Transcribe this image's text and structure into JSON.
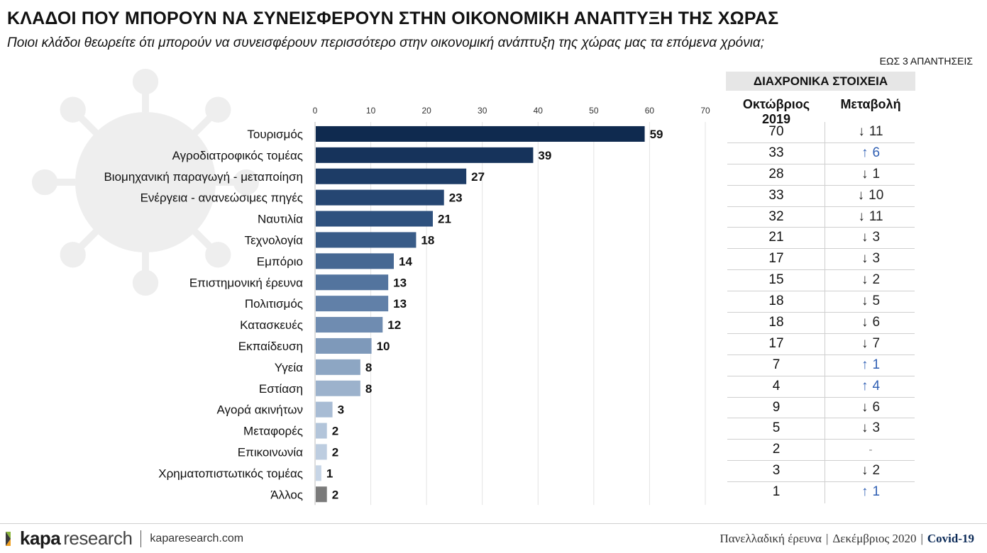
{
  "header": {
    "title": "ΚΛΑΔΟΙ ΠΟΥ ΜΠΟΡΟΥΝ ΝΑ ΣΥΝΕΙΣΦΕΡΟΥΝ ΣΤΗΝ ΟΙΚΟΝΟΜΙΚΗ ΑΝΑΠΤΥΞΗ ΤΗΣ ΧΩΡΑΣ",
    "subtitle": "Ποιοι κλάδοι θεωρείτε ότι μπορούν να συνεισφέρουν περισσότερο στην οικονομική ανάπτυξη της χώρας μας τα επόμενα χρόνια;",
    "note": "ΕΩΣ 3 ΑΠΑΝΤΗΣΕΙΣ"
  },
  "historical": {
    "header": "ΔΙΑΧΡΟΝΙΚΑ ΣΤΟΙΧΕΙΑ",
    "col_oct": "Οκτώβριος 2019",
    "col_change": "Μεταβολή",
    "rows": [
      {
        "oct": "70",
        "dir": "down",
        "change": "11"
      },
      {
        "oct": "33",
        "dir": "up",
        "change": "6"
      },
      {
        "oct": "28",
        "dir": "down",
        "change": "1"
      },
      {
        "oct": "33",
        "dir": "down",
        "change": "10"
      },
      {
        "oct": "32",
        "dir": "down",
        "change": "11"
      },
      {
        "oct": "21",
        "dir": "down",
        "change": "3"
      },
      {
        "oct": "17",
        "dir": "down",
        "change": "3"
      },
      {
        "oct": "15",
        "dir": "down",
        "change": "2"
      },
      {
        "oct": "18",
        "dir": "down",
        "change": "5"
      },
      {
        "oct": "18",
        "dir": "down",
        "change": "6"
      },
      {
        "oct": "17",
        "dir": "down",
        "change": "7"
      },
      {
        "oct": "7",
        "dir": "up",
        "change": "1"
      },
      {
        "oct": "4",
        "dir": "up",
        "change": "4"
      },
      {
        "oct": "9",
        "dir": "down",
        "change": "6"
      },
      {
        "oct": "5",
        "dir": "down",
        "change": "3"
      },
      {
        "oct": "2",
        "dir": "none",
        "change": "-"
      },
      {
        "oct": "3",
        "dir": "down",
        "change": "2"
      },
      {
        "oct": "1",
        "dir": "up",
        "change": "1"
      }
    ]
  },
  "chart_data": {
    "type": "bar",
    "orientation": "horizontal",
    "title": "",
    "xlabel": "",
    "ylabel": "",
    "xlim": [
      0,
      70
    ],
    "ticks": [
      0,
      10,
      20,
      30,
      40,
      50,
      60,
      70
    ],
    "grid": true,
    "categories": [
      "Τουρισμός",
      "Αγροδιατροφικός τομέας",
      "Βιομηχανική παραγωγή - μεταποίηση",
      "Ενέργεια - ανανεώσιμες πηγές",
      "Ναυτιλία",
      "Τεχνολογία",
      "Εμπόριο",
      "Επιστημονική έρευνα",
      "Πολιτισμός",
      "Κατασκευές",
      "Εκπαίδευση",
      "Υγεία",
      "Εστίαση",
      "Αγορά ακινήτων",
      "Μεταφορές",
      "Επικοινωνία",
      "Χρηματοπιστωτικός τομέας",
      "Άλλος"
    ],
    "values": [
      59,
      39,
      27,
      23,
      21,
      18,
      14,
      13,
      13,
      12,
      10,
      8,
      8,
      3,
      2,
      2,
      1,
      2
    ],
    "colors": [
      "#0f2a4f",
      "#16335b",
      "#1d3c66",
      "#254672",
      "#2e517e",
      "#395c88",
      "#466893",
      "#53749e",
      "#6180a8",
      "#6f8cb1",
      "#7e99ba",
      "#8da6c3",
      "#9cb2cc",
      "#a8bcd4",
      "#b3c5da",
      "#bdcde0",
      "#c7d5e6",
      "#7a7a7a"
    ]
  },
  "footer": {
    "logo_bold": "kapa",
    "logo_light": "research",
    "site": "kaparesearch.com",
    "survey": "Πανελλαδική έρευνα",
    "date": "Δεκέμβριος 2020",
    "tag": "Covid-19"
  }
}
